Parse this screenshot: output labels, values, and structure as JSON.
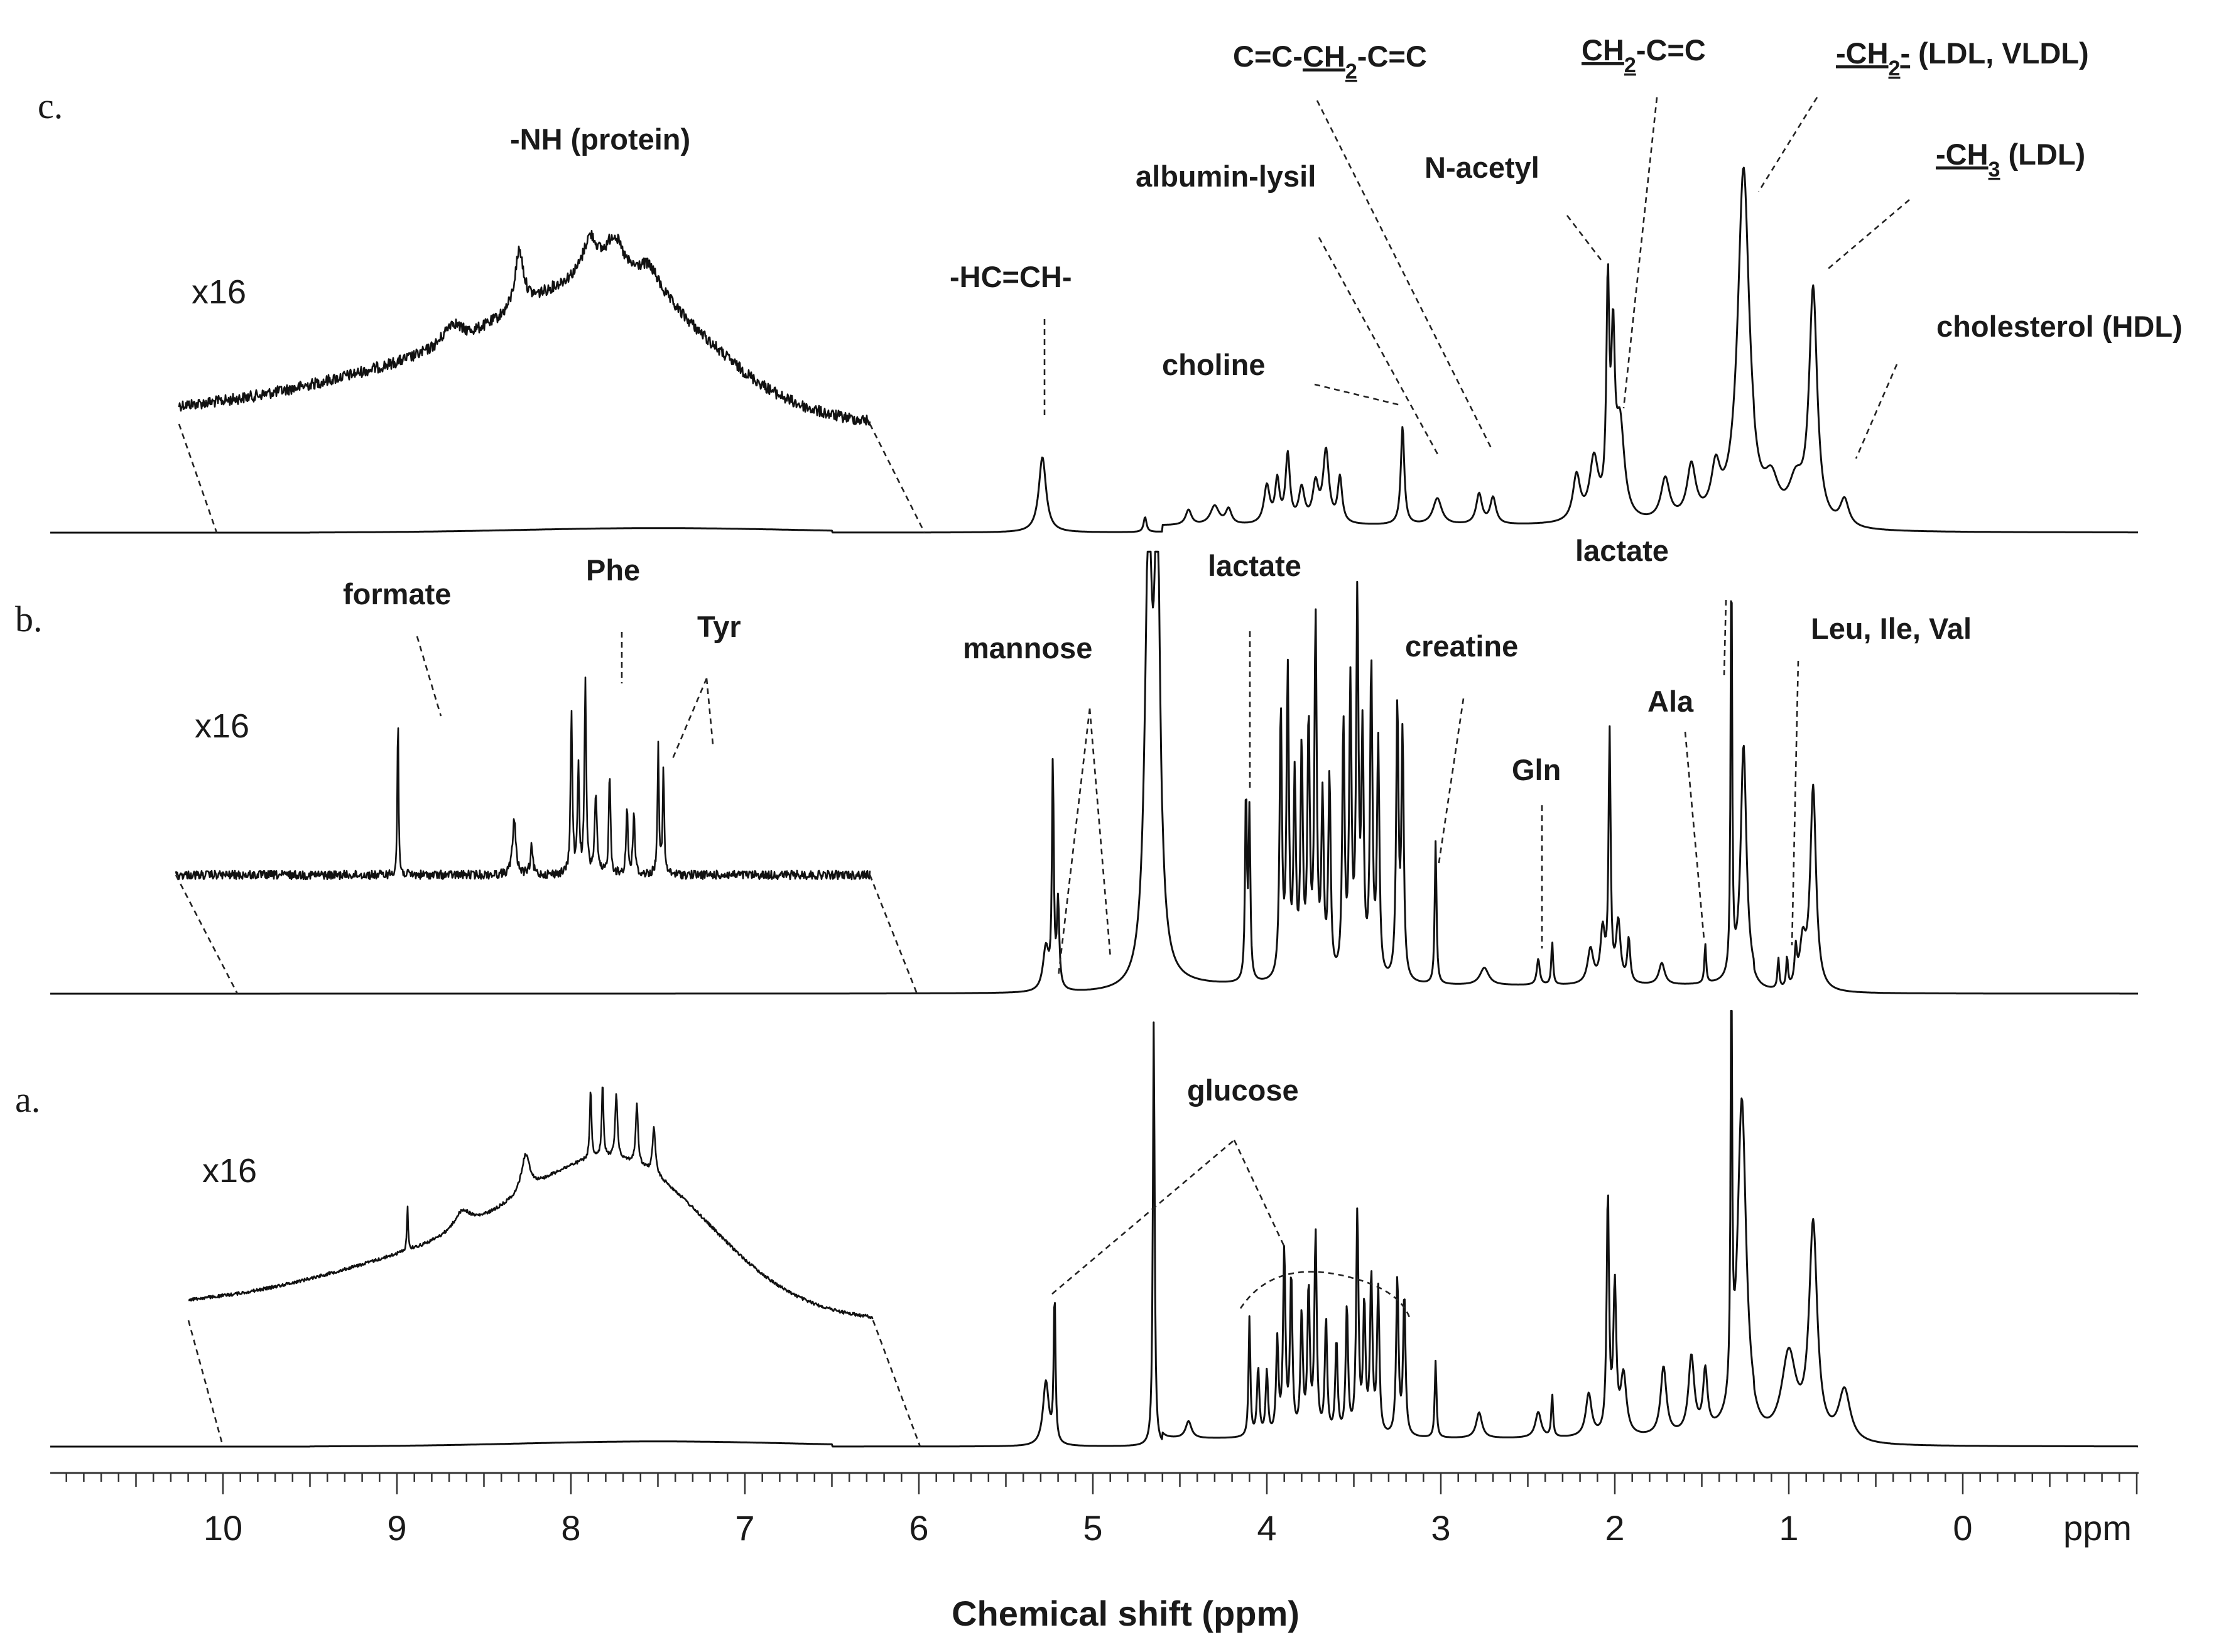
{
  "chart_data": {
    "type": "line",
    "title": "",
    "xlabel": "Chemical shift (ppm)",
    "x_unit_label": "ppm",
    "x_direction": "decreasing",
    "xlim": [
      11,
      -1
    ],
    "major_ticks": [
      "10",
      "9",
      "8",
      "7",
      "6",
      "5",
      "4",
      "3",
      "2",
      "1",
      "0"
    ],
    "panels": [
      {
        "label": "c.",
        "magnification": "x16",
        "inset_range_ppm": [
          10,
          6
        ],
        "peaks": [
          {
            "ppm": 5.29,
            "h": 0.2,
            "w": 0.025
          },
          {
            "ppm": 4.7,
            "h": 0.04,
            "w": 0.01
          },
          {
            "ppm": 4.45,
            "h": 0.04,
            "w": 0.02
          },
          {
            "ppm": 4.3,
            "h": 0.05,
            "w": 0.03
          },
          {
            "ppm": 4.22,
            "h": 0.04,
            "w": 0.02
          },
          {
            "ppm": 4.0,
            "h": 0.1,
            "w": 0.02
          },
          {
            "ppm": 3.94,
            "h": 0.11,
            "w": 0.015
          },
          {
            "ppm": 3.88,
            "h": 0.18,
            "w": 0.015
          },
          {
            "ppm": 3.8,
            "h": 0.09,
            "w": 0.02
          },
          {
            "ppm": 3.72,
            "h": 0.1,
            "w": 0.02
          },
          {
            "ppm": 3.66,
            "h": 0.19,
            "w": 0.02
          },
          {
            "ppm": 3.58,
            "h": 0.12,
            "w": 0.015
          },
          {
            "ppm": 3.22,
            "h": 0.26,
            "w": 0.012
          },
          {
            "ppm": 3.02,
            "h": 0.07,
            "w": 0.03
          },
          {
            "ppm": 2.78,
            "h": 0.08,
            "w": 0.02
          },
          {
            "ppm": 2.7,
            "h": 0.07,
            "w": 0.02
          },
          {
            "ppm": 2.22,
            "h": 0.12,
            "w": 0.025
          },
          {
            "ppm": 2.12,
            "h": 0.16,
            "w": 0.03
          },
          {
            "ppm": 2.04,
            "h": 0.58,
            "w": 0.01
          },
          {
            "ppm": 2.01,
            "h": 0.42,
            "w": 0.012
          },
          {
            "ppm": 1.97,
            "h": 0.25,
            "w": 0.03
          },
          {
            "ppm": 1.71,
            "h": 0.11,
            "w": 0.03
          },
          {
            "ppm": 1.56,
            "h": 0.14,
            "w": 0.03
          },
          {
            "ppm": 1.42,
            "h": 0.12,
            "w": 0.03
          },
          {
            "ppm": 1.26,
            "h": 0.93,
            "w": 0.04
          },
          {
            "ppm": 1.1,
            "h": 0.1,
            "w": 0.05
          },
          {
            "ppm": 0.96,
            "h": 0.1,
            "w": 0.05
          },
          {
            "ppm": 0.86,
            "h": 0.62,
            "w": 0.028
          },
          {
            "ppm": 0.68,
            "h": 0.07,
            "w": 0.03
          }
        ],
        "inset_peaks": [
          {
            "ppm": 8.42,
            "h": 0.1,
            "w": 0.06
          },
          {
            "ppm": 8.03,
            "h": 0.28,
            "w": 0.03
          },
          {
            "ppm": 7.62,
            "h": 0.18,
            "w": 0.05
          },
          {
            "ppm": 7.48,
            "h": 0.18,
            "w": 0.06
          },
          {
            "ppm": 7.28,
            "h": 0.12,
            "w": 0.08
          }
        ]
      },
      {
        "label": "b.",
        "magnification": "x16",
        "inset_range_ppm": [
          10,
          6
        ],
        "peaks": [
          {
            "ppm": 5.27,
            "h": 0.1,
            "w": 0.02
          },
          {
            "ppm": 5.23,
            "h": 0.52,
            "w": 0.006
          },
          {
            "ppm": 5.2,
            "h": 0.2,
            "w": 0.008
          },
          {
            "ppm": 4.68,
            "h": 1.0,
            "w": 0.025
          },
          {
            "ppm": 4.63,
            "h": 1.0,
            "w": 0.02
          },
          {
            "ppm": 4.12,
            "h": 0.44,
            "w": 0.006
          },
          {
            "ppm": 4.1,
            "h": 0.38,
            "w": 0.006
          },
          {
            "ppm": 3.92,
            "h": 0.62,
            "w": 0.008
          },
          {
            "ppm": 3.88,
            "h": 0.7,
            "w": 0.008
          },
          {
            "ppm": 3.84,
            "h": 0.45,
            "w": 0.008
          },
          {
            "ppm": 3.8,
            "h": 0.52,
            "w": 0.008
          },
          {
            "ppm": 3.76,
            "h": 0.58,
            "w": 0.008
          },
          {
            "ppm": 3.72,
            "h": 0.82,
            "w": 0.008
          },
          {
            "ppm": 3.68,
            "h": 0.4,
            "w": 0.008
          },
          {
            "ppm": 3.64,
            "h": 0.46,
            "w": 0.008
          },
          {
            "ppm": 3.56,
            "h": 0.58,
            "w": 0.008
          },
          {
            "ppm": 3.52,
            "h": 0.66,
            "w": 0.008
          },
          {
            "ppm": 3.48,
            "h": 0.86,
            "w": 0.008
          },
          {
            "ppm": 3.45,
            "h": 0.54,
            "w": 0.008
          },
          {
            "ppm": 3.4,
            "h": 0.72,
            "w": 0.008
          },
          {
            "ppm": 3.36,
            "h": 0.54,
            "w": 0.008
          },
          {
            "ppm": 3.25,
            "h": 0.63,
            "w": 0.008
          },
          {
            "ppm": 3.22,
            "h": 0.56,
            "w": 0.008
          },
          {
            "ppm": 3.03,
            "h": 0.33,
            "w": 0.006
          },
          {
            "ppm": 2.75,
            "h": 0.04,
            "w": 0.03
          },
          {
            "ppm": 2.44,
            "h": 0.06,
            "w": 0.01
          },
          {
            "ppm": 2.36,
            "h": 0.1,
            "w": 0.006
          },
          {
            "ppm": 2.14,
            "h": 0.08,
            "w": 0.02
          },
          {
            "ppm": 2.07,
            "h": 0.12,
            "w": 0.015
          },
          {
            "ppm": 2.03,
            "h": 0.57,
            "w": 0.007
          },
          {
            "ppm": 1.98,
            "h": 0.14,
            "w": 0.015
          },
          {
            "ppm": 1.92,
            "h": 0.1,
            "w": 0.01
          },
          {
            "ppm": 1.73,
            "h": 0.05,
            "w": 0.02
          },
          {
            "ppm": 1.48,
            "h": 0.09,
            "w": 0.006
          },
          {
            "ppm": 1.33,
            "h": 1.0,
            "w": 0.005
          },
          {
            "ppm": 1.26,
            "h": 0.55,
            "w": 0.02
          },
          {
            "ppm": 1.06,
            "h": 0.07,
            "w": 0.006
          },
          {
            "ppm": 1.01,
            "h": 0.07,
            "w": 0.006
          },
          {
            "ppm": 0.96,
            "h": 0.08,
            "w": 0.008
          },
          {
            "ppm": 0.92,
            "h": 0.1,
            "w": 0.02
          },
          {
            "ppm": 0.86,
            "h": 0.47,
            "w": 0.02
          }
        ],
        "inset_peaks": [
          {
            "ppm": 8.72,
            "h": 0.85,
            "w": 0.004
          },
          {
            "ppm": 8.05,
            "h": 0.28,
            "w": 0.012
          },
          {
            "ppm": 7.95,
            "h": 0.14,
            "w": 0.008
          },
          {
            "ppm": 7.72,
            "h": 0.85,
            "w": 0.006
          },
          {
            "ppm": 7.68,
            "h": 0.55,
            "w": 0.006
          },
          {
            "ppm": 7.64,
            "h": 1.0,
            "w": 0.006
          },
          {
            "ppm": 7.58,
            "h": 0.4,
            "w": 0.008
          },
          {
            "ppm": 7.5,
            "h": 0.52,
            "w": 0.006
          },
          {
            "ppm": 7.4,
            "h": 0.35,
            "w": 0.006
          },
          {
            "ppm": 7.36,
            "h": 0.33,
            "w": 0.006
          },
          {
            "ppm": 7.22,
            "h": 0.68,
            "w": 0.005
          },
          {
            "ppm": 7.19,
            "h": 0.55,
            "w": 0.005
          }
        ]
      },
      {
        "label": "a.",
        "magnification": "x16",
        "inset_range_ppm": [
          10,
          6
        ],
        "peaks": [
          {
            "ppm": 5.27,
            "h": 0.15,
            "w": 0.02
          },
          {
            "ppm": 5.22,
            "h": 0.35,
            "w": 0.006
          },
          {
            "ppm": 4.65,
            "h": 1.0,
            "w": 0.006
          },
          {
            "ppm": 4.45,
            "h": 0.04,
            "w": 0.02
          },
          {
            "ppm": 4.1,
            "h": 0.28,
            "w": 0.006
          },
          {
            "ppm": 4.05,
            "h": 0.16,
            "w": 0.008
          },
          {
            "ppm": 4.0,
            "h": 0.15,
            "w": 0.008
          },
          {
            "ppm": 3.94,
            "h": 0.22,
            "w": 0.008
          },
          {
            "ppm": 3.9,
            "h": 0.43,
            "w": 0.008
          },
          {
            "ppm": 3.86,
            "h": 0.37,
            "w": 0.008
          },
          {
            "ppm": 3.8,
            "h": 0.28,
            "w": 0.008
          },
          {
            "ppm": 3.76,
            "h": 0.34,
            "w": 0.008
          },
          {
            "ppm": 3.72,
            "h": 0.47,
            "w": 0.008
          },
          {
            "ppm": 3.66,
            "h": 0.27,
            "w": 0.008
          },
          {
            "ppm": 3.6,
            "h": 0.22,
            "w": 0.008
          },
          {
            "ppm": 3.54,
            "h": 0.3,
            "w": 0.008
          },
          {
            "ppm": 3.48,
            "h": 0.52,
            "w": 0.008
          },
          {
            "ppm": 3.44,
            "h": 0.3,
            "w": 0.008
          },
          {
            "ppm": 3.4,
            "h": 0.37,
            "w": 0.008
          },
          {
            "ppm": 3.36,
            "h": 0.34,
            "w": 0.008
          },
          {
            "ppm": 3.25,
            "h": 0.37,
            "w": 0.008
          },
          {
            "ppm": 3.21,
            "h": 0.33,
            "w": 0.008
          },
          {
            "ppm": 3.03,
            "h": 0.18,
            "w": 0.006
          },
          {
            "ppm": 2.78,
            "h": 0.06,
            "w": 0.02
          },
          {
            "ppm": 2.44,
            "h": 0.06,
            "w": 0.02
          },
          {
            "ppm": 2.36,
            "h": 0.1,
            "w": 0.006
          },
          {
            "ppm": 2.15,
            "h": 0.1,
            "w": 0.02
          },
          {
            "ppm": 2.04,
            "h": 0.56,
            "w": 0.008
          },
          {
            "ppm": 2.0,
            "h": 0.34,
            "w": 0.01
          },
          {
            "ppm": 1.95,
            "h": 0.14,
            "w": 0.02
          },
          {
            "ppm": 1.72,
            "h": 0.16,
            "w": 0.02
          },
          {
            "ppm": 1.56,
            "h": 0.18,
            "w": 0.02
          },
          {
            "ppm": 1.48,
            "h": 0.14,
            "w": 0.015
          },
          {
            "ppm": 1.33,
            "h": 1.0,
            "w": 0.005
          },
          {
            "ppm": 1.27,
            "h": 0.78,
            "w": 0.03
          },
          {
            "ppm": 1.0,
            "h": 0.2,
            "w": 0.05
          },
          {
            "ppm": 0.86,
            "h": 0.5,
            "w": 0.028
          },
          {
            "ppm": 0.68,
            "h": 0.12,
            "w": 0.04
          }
        ],
        "inset_peaks": [
          {
            "ppm": 8.72,
            "h": 0.2,
            "w": 0.004
          },
          {
            "ppm": 8.4,
            "h": 0.08,
            "w": 0.06
          },
          {
            "ppm": 8.03,
            "h": 0.16,
            "w": 0.03
          },
          {
            "ppm": 7.65,
            "h": 0.3,
            "w": 0.006
          },
          {
            "ppm": 7.58,
            "h": 0.32,
            "w": 0.006
          },
          {
            "ppm": 7.5,
            "h": 0.28,
            "w": 0.008
          },
          {
            "ppm": 7.38,
            "h": 0.26,
            "w": 0.008
          },
          {
            "ppm": 7.28,
            "h": 0.2,
            "w": 0.01
          }
        ]
      }
    ],
    "annotations": [
      {
        "text": "-NH (protein)",
        "panel": "c"
      },
      {
        "text": "-HC=CH-",
        "panel": "c"
      },
      {
        "text": "choline",
        "panel": "c"
      },
      {
        "text": "albumin-lysil",
        "panel": "c"
      },
      {
        "text": "N-acetyl",
        "panel": "c"
      },
      {
        "text": "lactate",
        "panel": "b"
      },
      {
        "text": "formate",
        "panel": "b"
      },
      {
        "text": "Phe",
        "panel": "b"
      },
      {
        "text": "Tyr",
        "panel": "b"
      },
      {
        "text": "mannose",
        "panel": "b"
      },
      {
        "text": "lactate",
        "panel": "b"
      },
      {
        "text": "creatine",
        "panel": "b"
      },
      {
        "text": "Gln",
        "panel": "b"
      },
      {
        "text": "Ala",
        "panel": "b"
      },
      {
        "text": "Leu, Ile, Val",
        "panel": "b"
      },
      {
        "text": "glucose",
        "panel": "a"
      }
    ],
    "rich_annotations": [
      {
        "parts": [
          {
            "t": "C=C-"
          },
          {
            "t": "CH",
            "u": true
          },
          {
            "t": "2",
            "sub": true,
            "u": true
          },
          {
            "t": "-C=C"
          }
        ]
      },
      {
        "parts": [
          {
            "t": "CH",
            "u": true
          },
          {
            "t": "2",
            "sub": true,
            "u": true
          },
          {
            "t": "-C=C"
          }
        ]
      },
      {
        "parts": [
          {
            "t": "-CH",
            "u": true
          },
          {
            "t": "2",
            "sub": true,
            "u": true
          },
          {
            "t": "-",
            "u": true
          },
          {
            "t": " (LDL, VLDL)"
          }
        ]
      },
      {
        "parts": [
          {
            "t": "-CH",
            "u": true
          },
          {
            "t": "3",
            "sub": true,
            "u": true
          },
          {
            "t": " (LDL)"
          }
        ]
      },
      {
        "parts": [
          {
            "t": "cholesterol "
          },
          {
            "t": "(HDL)"
          }
        ]
      }
    ]
  }
}
